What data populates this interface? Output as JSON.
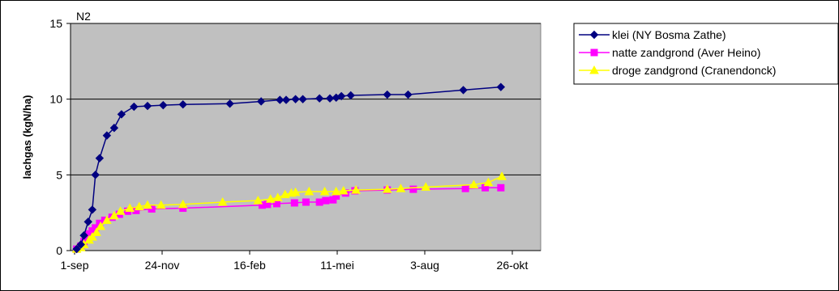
{
  "chart_data": {
    "type": "line",
    "title": "N2",
    "xlabel": "",
    "ylabel": "lachgas (kgN/ha)",
    "ylim": [
      0,
      15
    ],
    "yticks": [
      0,
      5,
      10,
      15
    ],
    "xlim": [
      0,
      420
    ],
    "x_ticks": [
      {
        "x": 0,
        "label": "1-sep"
      },
      {
        "x": 84,
        "label": "24-nov"
      },
      {
        "x": 168,
        "label": "16-feb"
      },
      {
        "x": 252,
        "label": "11-mei"
      },
      {
        "x": 336,
        "label": "3-aug"
      },
      {
        "x": 420,
        "label": "26-okt"
      }
    ],
    "grid": "horizontal",
    "legend_position": "right",
    "plot_background": "#c0c0c0",
    "series": [
      {
        "name": "klei (NY Bosma Zathe)",
        "color": "#000080",
        "marker": "diamond",
        "x": [
          2,
          6,
          9,
          13,
          17,
          20,
          24,
          31,
          38,
          45,
          57,
          70,
          85,
          104,
          149,
          179,
          197,
          203,
          212,
          219,
          235,
          245,
          251,
          256,
          265,
          300,
          320,
          373,
          409
        ],
        "y": [
          0.1,
          0.4,
          1.0,
          1.9,
          2.7,
          5.0,
          6.1,
          7.6,
          8.1,
          9.0,
          9.5,
          9.55,
          9.6,
          9.65,
          9.7,
          9.85,
          9.95,
          9.95,
          10.0,
          10.0,
          10.05,
          10.05,
          10.1,
          10.2,
          10.25,
          10.3,
          10.3,
          10.6,
          10.8
        ]
      },
      {
        "name": "natte zandgrond (Aver Heino)",
        "color": "#ff00ff",
        "marker": "square",
        "x": [
          2,
          6,
          9,
          14,
          17,
          20,
          24,
          29,
          36,
          43,
          51,
          59,
          74,
          104,
          180,
          185,
          194,
          211,
          222,
          235,
          241,
          248,
          251,
          260,
          269,
          300,
          325,
          375,
          394,
          409
        ],
        "y": [
          0.1,
          0.3,
          0.6,
          1.1,
          1.3,
          1.5,
          1.8,
          2.0,
          2.2,
          2.4,
          2.6,
          2.65,
          2.75,
          2.8,
          3.0,
          3.05,
          3.1,
          3.15,
          3.2,
          3.2,
          3.3,
          3.35,
          3.6,
          3.8,
          3.95,
          4.0,
          4.05,
          4.1,
          4.15,
          4.15
        ]
      },
      {
        "name": "droge zandgrond (Cranendonck)",
        "color": "#ffff00",
        "marker": "triangle",
        "x": [
          2,
          6,
          9,
          14,
          17,
          21,
          25,
          31,
          38,
          44,
          53,
          62,
          70,
          83,
          104,
          142,
          176,
          188,
          195,
          202,
          208,
          212,
          225,
          240,
          251,
          258,
          270,
          300,
          313,
          337,
          383,
          397,
          410
        ],
        "y": [
          0.1,
          0.2,
          0.4,
          0.7,
          0.9,
          1.2,
          1.6,
          2.0,
          2.3,
          2.6,
          2.8,
          2.9,
          3.0,
          3.0,
          3.05,
          3.2,
          3.3,
          3.4,
          3.5,
          3.7,
          3.8,
          3.85,
          3.9,
          3.9,
          3.9,
          3.95,
          4.0,
          4.05,
          4.1,
          4.2,
          4.35,
          4.5,
          4.9
        ]
      }
    ]
  }
}
